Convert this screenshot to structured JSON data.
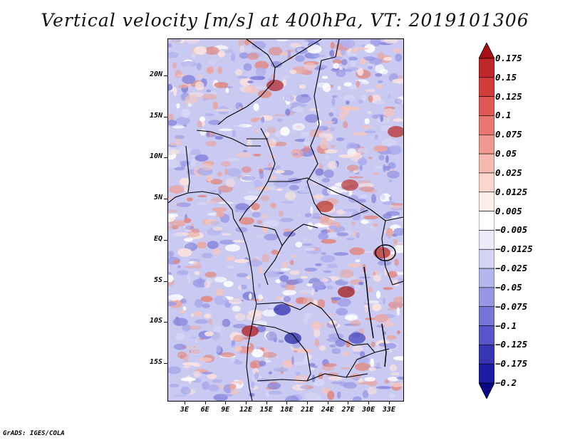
{
  "title": "Vertical velocity [m/s] at 400hPa, VT: 2019101306",
  "footer": "GrADS: IGES/COLA",
  "colors": {
    "background_field": "#c7c9f0",
    "border": "#000000"
  },
  "map": {
    "lat_labels": [
      "20N",
      "15N",
      "10N",
      "5N",
      "EQ",
      "5S",
      "10S",
      "15S"
    ],
    "lon_labels": [
      "3E",
      "6E",
      "9E",
      "12E",
      "15E",
      "18E",
      "21E",
      "24E",
      "27E",
      "30E",
      "33E"
    ],
    "lat_values": [
      20,
      15,
      10,
      5,
      0,
      -5,
      -10,
      -15
    ],
    "lon_values": [
      3,
      6,
      9,
      12,
      15,
      18,
      21,
      24,
      27,
      30,
      33
    ],
    "lat_range": [
      -19.5,
      24.5
    ],
    "lon_range": [
      0.5,
      35
    ]
  },
  "colorbar": {
    "labels": [
      "0.175",
      "0.15",
      "0.125",
      "0.1",
      "0.075",
      "0.05",
      "0.025",
      "0.0125",
      "0.005",
      "−0.005",
      "−0.0125",
      "−0.025",
      "−0.05",
      "−0.075",
      "−0.1",
      "−0.125",
      "−0.175",
      "−0.2"
    ],
    "colors": [
      "#a50f15",
      "#c0262a",
      "#d43b3b",
      "#e05a55",
      "#e8776f",
      "#ef9a90",
      "#f5b9b0",
      "#fad6cf",
      "#fdeeea",
      "#ffffff",
      "#ecebfb",
      "#d4d3f6",
      "#b6b6ee",
      "#9696e2",
      "#7676d8",
      "#5656c8",
      "#3535b5",
      "#1c1ca3",
      "#080885"
    ]
  }
}
